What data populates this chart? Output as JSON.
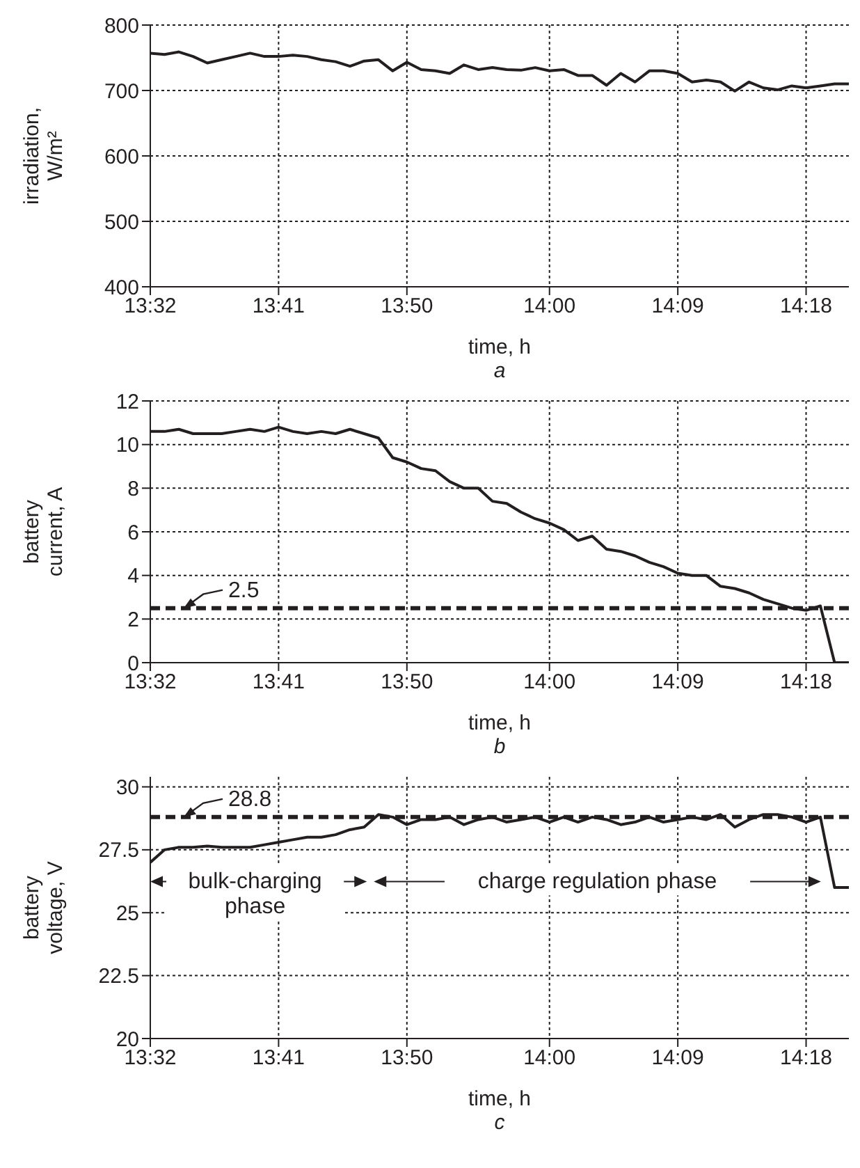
{
  "chart_data": [
    {
      "type": "line",
      "title": "a",
      "xlabel": "time, h",
      "ylabel": "irradiation, W/m²",
      "color": "#231f20",
      "grid": true,
      "x": [
        13.5333,
        13.55,
        13.5667,
        13.5833,
        13.6,
        13.6167,
        13.6333,
        13.65,
        13.6667,
        13.6833,
        13.7,
        13.7167,
        13.7333,
        13.75,
        13.7667,
        13.7833,
        13.8,
        13.8167,
        13.8333,
        13.85,
        13.8667,
        13.8833,
        13.9,
        13.9167,
        13.9333,
        13.95,
        13.9667,
        13.9833,
        14.0,
        14.0167,
        14.0333,
        14.05,
        14.0667,
        14.0833,
        14.1,
        14.1167,
        14.1333,
        14.15,
        14.1667,
        14.1833,
        14.2,
        14.2167,
        14.2333,
        14.25,
        14.2667,
        14.2833,
        14.3,
        14.3167,
        14.3333,
        14.35
      ],
      "values": [
        757,
        755,
        759,
        752,
        742,
        747,
        752,
        757,
        752,
        752,
        754,
        752,
        747,
        744,
        737,
        745,
        747,
        730,
        743,
        732,
        730,
        726,
        739,
        732,
        735,
        732,
        731,
        735,
        730,
        732,
        723,
        723,
        708,
        726,
        713,
        730,
        730,
        726,
        713,
        716,
        713,
        699,
        713,
        704,
        701,
        707,
        704,
        707,
        710,
        710
      ],
      "xlim": [
        13.5333,
        14.35
      ],
      "ylim": [
        400,
        800
      ],
      "yticks": [
        400,
        500,
        600,
        700,
        800
      ],
      "xticks": [
        {
          "value": 13.5333,
          "label": "13:32"
        },
        {
          "value": 13.6833,
          "label": "13:41"
        },
        {
          "value": 13.8333,
          "label": "13:50"
        },
        {
          "value": 14.0,
          "label": "14:00"
        },
        {
          "value": 14.15,
          "label": "14:09"
        },
        {
          "value": 14.3,
          "label": "14:18"
        }
      ]
    },
    {
      "type": "line",
      "title": "b",
      "xlabel": "time, h",
      "ylabel": "battery current, A",
      "color": "#231f20",
      "grid": true,
      "x": [
        13.5333,
        13.55,
        13.5667,
        13.5833,
        13.6,
        13.6167,
        13.6333,
        13.65,
        13.6667,
        13.6833,
        13.7,
        13.7167,
        13.7333,
        13.75,
        13.7667,
        13.7833,
        13.8,
        13.8167,
        13.8333,
        13.85,
        13.8667,
        13.8833,
        13.9,
        13.9167,
        13.9333,
        13.95,
        13.9667,
        13.9833,
        14.0,
        14.0167,
        14.0333,
        14.05,
        14.0667,
        14.0833,
        14.1,
        14.1167,
        14.1333,
        14.15,
        14.1667,
        14.1833,
        14.2,
        14.2167,
        14.2333,
        14.25,
        14.2667,
        14.2833,
        14.3,
        14.3167,
        14.3333,
        14.35
      ],
      "values": [
        10.6,
        10.6,
        10.7,
        10.5,
        10.5,
        10.5,
        10.6,
        10.7,
        10.6,
        10.8,
        10.6,
        10.5,
        10.6,
        10.5,
        10.7,
        10.5,
        10.3,
        9.4,
        9.2,
        8.9,
        8.8,
        8.3,
        8.0,
        8.0,
        7.4,
        7.3,
        6.9,
        6.6,
        6.4,
        6.1,
        5.6,
        5.8,
        5.2,
        5.1,
        4.9,
        4.6,
        4.4,
        4.1,
        4.0,
        4.0,
        3.5,
        3.4,
        3.2,
        2.9,
        2.7,
        2.5,
        2.4,
        2.6,
        0,
        0
      ],
      "xlim": [
        13.5333,
        14.35
      ],
      "ylim": [
        0,
        12
      ],
      "yticks": [
        0,
        2,
        4,
        6,
        8,
        10,
        12
      ],
      "xticks": [
        {
          "value": 13.5333,
          "label": "13:32"
        },
        {
          "value": 13.6833,
          "label": "13:41"
        },
        {
          "value": 13.8333,
          "label": "13:50"
        },
        {
          "value": 14.0,
          "label": "14:00"
        },
        {
          "value": 14.15,
          "label": "14:09"
        },
        {
          "value": 14.3,
          "label": "14:18"
        }
      ],
      "ref_lines": [
        {
          "axis": "y",
          "value": 2.5,
          "label": "2.5",
          "line_style": "dashed",
          "color": "#231f20"
        }
      ]
    },
    {
      "type": "line",
      "title": "c",
      "xlabel": "time, h",
      "ylabel": "battery voltage, V",
      "color": "#231f20",
      "grid": true,
      "x": [
        13.5333,
        13.55,
        13.5667,
        13.5833,
        13.6,
        13.6167,
        13.6333,
        13.65,
        13.6667,
        13.6833,
        13.7,
        13.7167,
        13.7333,
        13.75,
        13.7667,
        13.7833,
        13.8,
        13.8167,
        13.8333,
        13.85,
        13.8667,
        13.8833,
        13.9,
        13.9167,
        13.9333,
        13.95,
        13.9667,
        13.9833,
        14.0,
        14.0167,
        14.0333,
        14.05,
        14.0667,
        14.0833,
        14.1,
        14.1167,
        14.1333,
        14.15,
        14.1667,
        14.1833,
        14.2,
        14.2167,
        14.2333,
        14.25,
        14.2667,
        14.2833,
        14.3,
        14.3167,
        14.3333,
        14.35
      ],
      "values": [
        27.0,
        27.5,
        27.6,
        27.6,
        27.65,
        27.6,
        27.6,
        27.6,
        27.7,
        27.8,
        27.9,
        28.0,
        28.0,
        28.1,
        28.3,
        28.4,
        28.9,
        28.8,
        28.5,
        28.7,
        28.7,
        28.8,
        28.5,
        28.7,
        28.8,
        28.6,
        28.7,
        28.8,
        28.6,
        28.8,
        28.6,
        28.8,
        28.7,
        28.5,
        28.6,
        28.8,
        28.6,
        28.7,
        28.8,
        28.7,
        28.9,
        28.4,
        28.7,
        28.9,
        28.9,
        28.8,
        28.6,
        28.8,
        26.0,
        26.0
      ],
      "xlim": [
        13.5333,
        14.35
      ],
      "ylim": [
        20,
        30.4
      ],
      "yticks": [
        20,
        22.5,
        25,
        27.5,
        30
      ],
      "xticks": [
        {
          "value": 13.5333,
          "label": "13:32"
        },
        {
          "value": 13.6833,
          "label": "13:41"
        },
        {
          "value": 13.8333,
          "label": "13:50"
        },
        {
          "value": 14.0,
          "label": "14:00"
        },
        {
          "value": 14.15,
          "label": "14:09"
        },
        {
          "value": 14.3,
          "label": "14:18"
        }
      ],
      "ref_lines": [
        {
          "axis": "y",
          "value": 28.8,
          "label": "28.8",
          "line_style": "dashed",
          "color": "#231f20"
        }
      ],
      "annotations": [
        "bulk-charging phase",
        "charge regulation phase"
      ]
    }
  ]
}
